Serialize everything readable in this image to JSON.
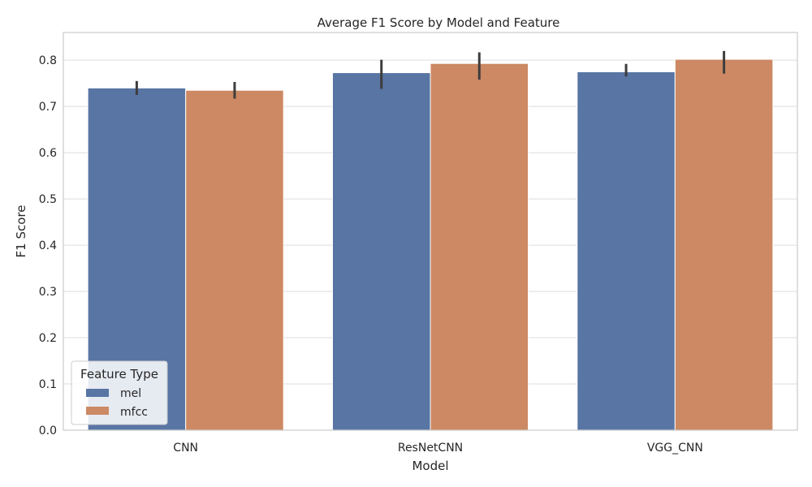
{
  "chart_data": {
    "type": "bar",
    "title": "Average F1 Score by Model and Feature",
    "xlabel": "Model",
    "ylabel": "F1 Score",
    "categories": [
      "CNN",
      "ResNetCNN",
      "VGG_CNN"
    ],
    "ylim": [
      0,
      0.86
    ],
    "yticks": [
      "0.0",
      "0.1",
      "0.2",
      "0.3",
      "0.4",
      "0.5",
      "0.6",
      "0.7",
      "0.8"
    ],
    "grid": true,
    "legend": {
      "title": "Feature Type",
      "placement": "lower-left"
    },
    "series": [
      {
        "name": "mel",
        "color": "#5875a4",
        "values": [
          0.74,
          0.773,
          0.775
        ],
        "ci_low": [
          0.725,
          0.738,
          0.765
        ],
        "ci_high": [
          0.755,
          0.801,
          0.792
        ]
      },
      {
        "name": "mfcc",
        "color": "#cc8963",
        "values": [
          0.735,
          0.793,
          0.802
        ],
        "ci_low": [
          0.717,
          0.758,
          0.771
        ],
        "ci_high": [
          0.753,
          0.817,
          0.82
        ]
      }
    ]
  }
}
